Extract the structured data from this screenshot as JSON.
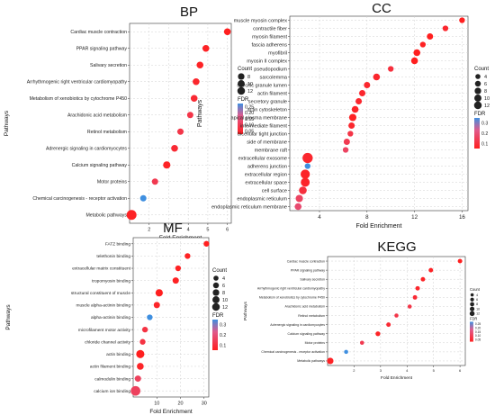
{
  "chart_data": [
    {
      "type": "scatter",
      "title": "BP",
      "xlabel": "Fold Enrichment",
      "ylabel": "Pathways",
      "xlim": [
        1,
        6.2
      ],
      "xticks": [
        "2",
        "3",
        "4",
        "5",
        "6"
      ],
      "categories": [
        "Cardiac muscle contraction",
        "PPAR signaling pathway",
        "Salivary secretion",
        "Arrhythmogenic right ventricular cardiomyopathy",
        "Metabolism of xenobiotics by cytochrome P450",
        "Arachidonic acid metabolism",
        "Retinol metabolism",
        "Adrenergic signaling in cardiomyocytes",
        "Calcium signaling pathway",
        "Motor proteins",
        "Chemical carcinogenesis - receptor activation",
        "Metabolic pathways"
      ],
      "x": [
        6.0,
        4.9,
        4.6,
        4.4,
        4.3,
        4.1,
        3.6,
        3.3,
        2.9,
        2.3,
        1.7,
        1.1
      ],
      "count": [
        5,
        5,
        5,
        5,
        5,
        4,
        4,
        5,
        6,
        4,
        4,
        13
      ],
      "fdr": [
        0.02,
        0.03,
        0.03,
        0.04,
        0.05,
        0.08,
        0.08,
        0.05,
        0.03,
        0.09,
        0.28,
        0.03
      ],
      "legend_count_title": "Count",
      "legend_count_values": [
        "8",
        "10",
        "12"
      ],
      "legend_fdr_title": "FDR",
      "legend_fdr_ticks": [
        "0.25",
        "0.20",
        "0.15",
        "0.10",
        "0.05"
      ]
    },
    {
      "type": "scatter",
      "title": "CC",
      "xlabel": "Fold Enrichment",
      "ylabel": "Pathways",
      "xlim": [
        1.5,
        16.5
      ],
      "xticks": [
        "4",
        "8",
        "12",
        "16"
      ],
      "categories": [
        "muscle myosin complex",
        "contractile fiber",
        "myosin filament",
        "fascia adherens",
        "myofibril",
        "myosin II complex",
        "pseudopodium",
        "sarcolemma",
        "specific granule lumen",
        "actin filament",
        "secretory granule",
        "actin cytoskeleton",
        "apical plasma membrane",
        "intermediate filament",
        "bicellular tight junction",
        "side of membrane",
        "membrane raft",
        "extracellular exosome",
        "adherens junction",
        "extracellular region",
        "extracellular space",
        "cell surface",
        "endoplasmic reticulum",
        "endoplasmic reticulum membrane"
      ],
      "x": [
        16.0,
        14.6,
        13.3,
        12.7,
        12.2,
        12.0,
        10.0,
        8.8,
        8.0,
        7.6,
        7.3,
        7.0,
        6.8,
        6.7,
        6.6,
        6.3,
        6.2,
        3.0,
        3.0,
        2.8,
        2.8,
        2.6,
        2.3,
        2.2
      ],
      "count": [
        3,
        3,
        4,
        3,
        5,
        5,
        3,
        5,
        4,
        4,
        4,
        5,
        6,
        4,
        3,
        4,
        3,
        14,
        3,
        11,
        10,
        7,
        6,
        5
      ],
      "fdr": [
        0.02,
        0.05,
        0.02,
        0.03,
        0.02,
        0.02,
        0.08,
        0.05,
        0.05,
        0.05,
        0.05,
        0.04,
        0.03,
        0.05,
        0.1,
        0.12,
        0.15,
        0.05,
        0.38,
        0.04,
        0.04,
        0.08,
        0.15,
        0.18
      ],
      "legend_count_title": "Count",
      "legend_count_values": [
        "4",
        "6",
        "8",
        "10",
        "12"
      ],
      "legend_fdr_title": "FDR",
      "legend_fdr_ticks": [
        "0.3",
        "0.2",
        "0.1"
      ]
    },
    {
      "type": "scatter",
      "title": "MF",
      "xlabel": "Fold Enrichment",
      "ylabel": "Pathways",
      "xlim": [
        0,
        32
      ],
      "xticks": [
        "10",
        "20",
        "30"
      ],
      "categories": [
        "FATZ binding",
        "telethonin binding",
        "extracellular matrix constituent",
        "tropomyosin binding",
        "structural constituent of muscle",
        "muscle alpha-actinin binding",
        "alpha-actinin binding",
        "microfilament motor activity",
        "chloride channel activity",
        "actin binding",
        "actin filament binding",
        "calmodulin binding",
        "calcium ion binding"
      ],
      "x": [
        31,
        23,
        19,
        18,
        11,
        10,
        7,
        5,
        4,
        3,
        3,
        2,
        1
      ],
      "count": [
        3,
        3,
        3,
        4,
        6,
        4,
        3,
        3,
        3,
        8,
        5,
        4,
        12
      ],
      "fdr": [
        0.03,
        0.04,
        0.04,
        0.04,
        0.03,
        0.05,
        0.38,
        0.1,
        0.1,
        0.03,
        0.05,
        0.15,
        0.15
      ],
      "legend_count_title": "Count",
      "legend_count_values": [
        "4",
        "6",
        "8",
        "10",
        "12"
      ],
      "legend_fdr_title": "FDR",
      "legend_fdr_ticks": [
        "0.3",
        "0.2",
        "0.1"
      ]
    },
    {
      "type": "scatter",
      "title": "KEGG",
      "xlabel": "Fold Enrichment",
      "ylabel": "Pathways",
      "xlim": [
        1,
        6.2
      ],
      "xticks": [
        "2",
        "3",
        "4",
        "5",
        "6"
      ],
      "categories": [
        "Cardiac muscle contraction",
        "PPAR signaling pathway",
        "Salivary secretion",
        "Arrhythmogenic right ventricular cardiomyopathy",
        "Metabolism of xenobiotics by cytochrome P450",
        "Arachidonic acid metabolism",
        "Retinol metabolism",
        "Adrenergic signaling in cardiomyocytes",
        "Calcium signaling pathway",
        "Motor proteins",
        "Chemical carcinogenesis - receptor activation",
        "Metabolic pathways"
      ],
      "x": [
        6.0,
        4.9,
        4.6,
        4.4,
        4.3,
        4.1,
        3.6,
        3.3,
        2.9,
        2.3,
        1.7,
        1.1
      ],
      "count": [
        5,
        5,
        5,
        5,
        5,
        4,
        4,
        5,
        6,
        4,
        4,
        13
      ],
      "fdr": [
        0.02,
        0.03,
        0.03,
        0.04,
        0.05,
        0.08,
        0.08,
        0.05,
        0.03,
        0.09,
        0.28,
        0.03
      ],
      "legend_count_title": "Count",
      "legend_count_values": [
        "4",
        "6",
        "8",
        "10",
        "12"
      ],
      "legend_fdr_title": "FDR",
      "legend_fdr_ticks": [
        "0.25",
        "0.20",
        "0.15",
        "0.10",
        "0.05"
      ]
    }
  ],
  "colors": {
    "fdr_high": "#3f8fe0",
    "fdr_mid": "#e05a8c",
    "fdr_low": "#ff1f1f",
    "grid": "#d0d0d0"
  }
}
